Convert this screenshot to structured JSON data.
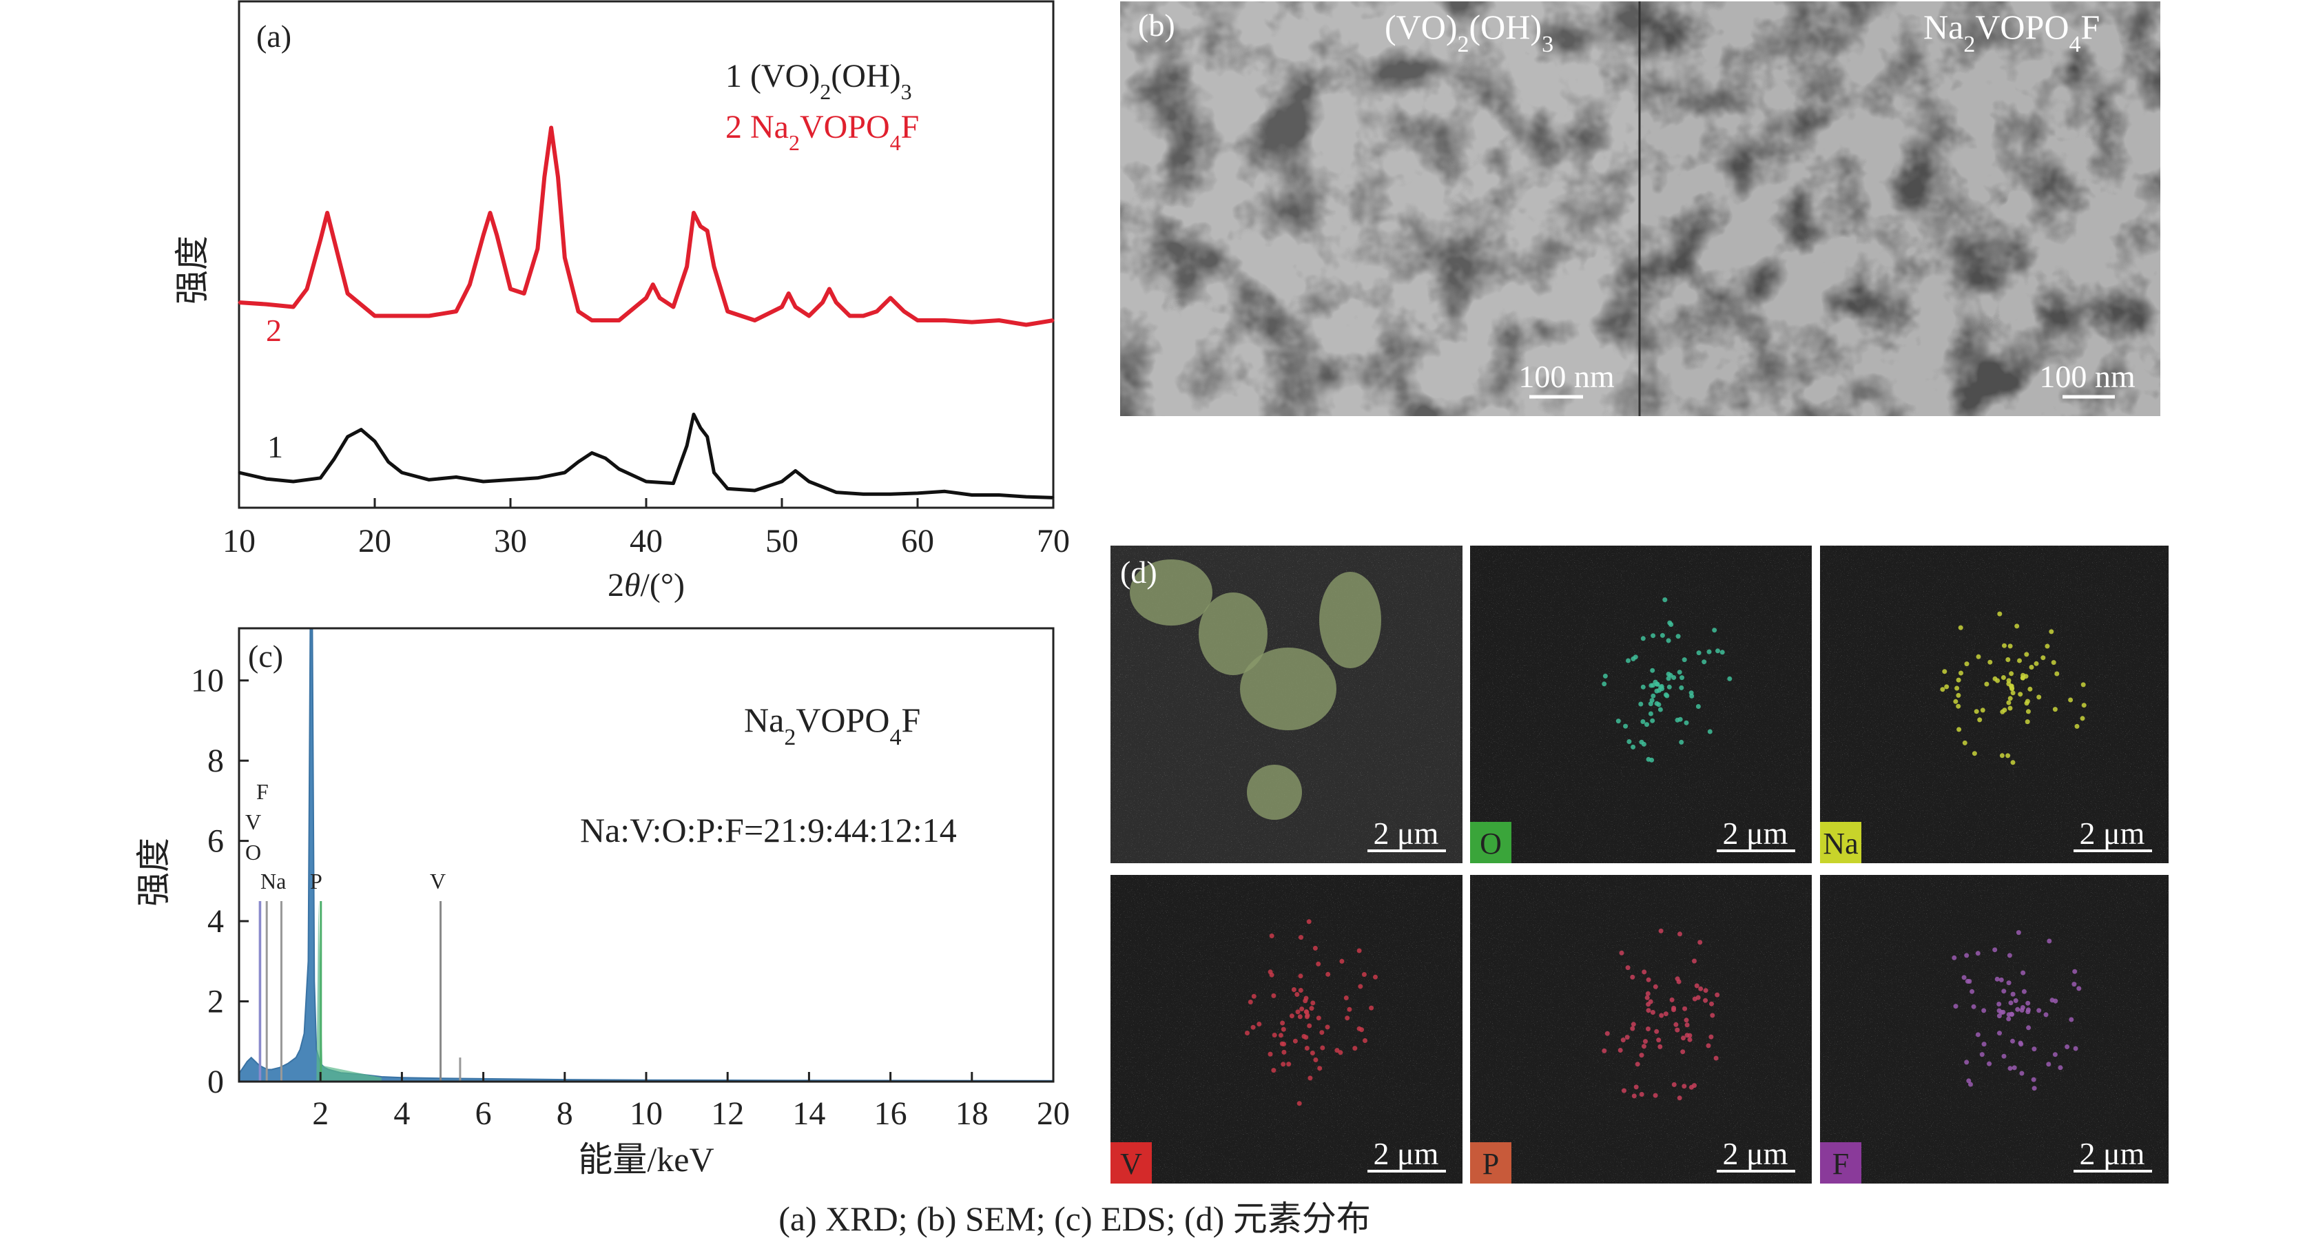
{
  "caption": "(a) XRD; (b) SEM; (c) EDS; (d) 元素分布",
  "panel_a": {
    "label": "(a)",
    "ylabel": "强度",
    "xlabel_prefix": "2",
    "xlabel_theta": "θ",
    "xlabel_suffix": "/(°)",
    "legend": [
      {
        "num": "1",
        "formula": [
          "(VO)",
          "2",
          "(OH)",
          "3"
        ],
        "color": "#222222"
      },
      {
        "num": "2",
        "formula": [
          "Na",
          "2",
          "VOPO",
          "4",
          "F"
        ],
        "color": "#e0202e"
      }
    ],
    "curve_labels": [
      "1",
      "2"
    ]
  },
  "panel_b": {
    "label": "(b)",
    "left_title": [
      "(VO)",
      "2",
      "(OH)",
      "3"
    ],
    "right_title": [
      "Na",
      "2",
      "VOPO",
      "4",
      "F"
    ],
    "scale_left": "100 nm",
    "scale_right": "100 nm"
  },
  "panel_c": {
    "label": "(c)",
    "title": [
      "Na",
      "2",
      "VOPO",
      "4",
      "F"
    ],
    "ratio": "Na:V:O:P:F=21:9:44:12:14",
    "ylabel": "强度",
    "xlabel": "能量/keV",
    "peak_labels": [
      "F",
      "V",
      "O",
      "Na",
      "P",
      "V"
    ]
  },
  "panel_d": {
    "label": "(d)",
    "tiles": [
      {
        "element": "",
        "scale": "2 μm",
        "badge_color": ""
      },
      {
        "element": "O",
        "scale": "2 μm",
        "badge_color": "#3aa53a"
      },
      {
        "element": "Na",
        "scale": "2 μm",
        "badge_color": "#c8d42a"
      },
      {
        "element": "V",
        "scale": "2 μm",
        "badge_color": "#d42a2a"
      },
      {
        "element": "P",
        "scale": "2 μm",
        "badge_color": "#c85a3a"
      },
      {
        "element": "F",
        "scale": "2 μm",
        "badge_color": "#8a3a9a"
      }
    ]
  },
  "chart_data": [
    {
      "type": "line",
      "title": "",
      "xlabel": "2θ/(°)",
      "ylabel": "强度",
      "xlim": [
        10,
        70
      ],
      "xticks": [
        10,
        20,
        30,
        40,
        50,
        60,
        70
      ],
      "yticks": [],
      "grid": false,
      "legend_position": "top-right",
      "series": [
        {
          "name": "1 (VO)2(OH)3",
          "color": "#111111",
          "x": [
            10,
            12,
            14,
            16,
            17,
            18,
            19,
            20,
            21,
            22,
            24,
            26,
            28,
            30,
            32,
            34,
            35,
            36,
            37,
            38,
            40,
            42,
            43,
            43.5,
            44,
            44.5,
            45,
            46,
            48,
            50,
            51,
            52,
            54,
            56,
            58,
            60,
            62,
            64,
            66,
            68,
            70
          ],
          "y": [
            0.3,
            0.23,
            0.2,
            0.24,
            0.45,
            0.7,
            0.78,
            0.65,
            0.42,
            0.3,
            0.22,
            0.25,
            0.2,
            0.22,
            0.24,
            0.3,
            0.42,
            0.52,
            0.46,
            0.34,
            0.2,
            0.18,
            0.6,
            0.95,
            0.8,
            0.7,
            0.3,
            0.12,
            0.1,
            0.2,
            0.32,
            0.2,
            0.08,
            0.06,
            0.06,
            0.07,
            0.09,
            0.05,
            0.05,
            0.03,
            0.02
          ]
        },
        {
          "name": "2 Na2VOPO4F",
          "color": "#e0202e",
          "x": [
            10,
            12,
            14,
            15,
            16,
            16.5,
            17,
            18,
            20,
            22,
            24,
            26,
            27,
            28,
            28.5,
            29,
            30,
            31,
            32,
            32.5,
            33,
            33.5,
            34,
            35,
            36,
            38,
            40,
            40.5,
            41,
            42,
            43,
            43.5,
            44,
            44.5,
            45,
            46,
            48,
            50,
            50.5,
            51,
            52,
            53,
            53.5,
            54,
            55,
            56,
            57,
            58,
            59,
            60,
            62,
            64,
            66,
            68,
            70
          ],
          "y": [
            2.2,
            2.18,
            2.15,
            2.35,
            2.9,
            3.2,
            2.9,
            2.3,
            2.05,
            2.05,
            2.05,
            2.1,
            2.4,
            2.95,
            3.2,
            2.95,
            2.35,
            2.3,
            2.8,
            3.6,
            4.15,
            3.6,
            2.7,
            2.1,
            2.0,
            2.0,
            2.25,
            2.4,
            2.25,
            2.15,
            2.6,
            3.2,
            3.05,
            3.0,
            2.6,
            2.1,
            2.0,
            2.15,
            2.3,
            2.15,
            2.05,
            2.2,
            2.35,
            2.2,
            2.05,
            2.05,
            2.1,
            2.25,
            2.1,
            2.0,
            2.0,
            1.98,
            2.0,
            1.95,
            2.0
          ]
        }
      ]
    },
    {
      "type": "area",
      "title": "Na2VOPO4F",
      "xlabel": "能量/keV",
      "ylabel": "强度",
      "xlim": [
        0,
        20
      ],
      "ylim": [
        0,
        11.3
      ],
      "xticks": [
        2,
        4,
        6,
        8,
        10,
        12,
        14,
        16,
        18,
        20
      ],
      "yticks": [
        0,
        2,
        4,
        6,
        8,
        10
      ],
      "grid": false,
      "annotations": [
        "F",
        "V",
        "O",
        "Na",
        "P",
        "V",
        "Na:V:O:P:F=21:9:44:12:14"
      ],
      "series": [
        {
          "name": "spectrum",
          "color": "#4a86b8",
          "x": [
            0.0,
            0.2,
            0.3,
            0.4,
            0.5,
            0.6,
            0.7,
            0.8,
            1.0,
            1.2,
            1.4,
            1.5,
            1.6,
            1.7,
            1.75,
            1.8,
            1.85,
            1.9,
            2.0,
            2.1,
            2.2,
            2.5,
            3.0,
            3.5,
            4.0,
            5.0,
            6.0,
            8.0,
            10.0,
            14.0,
            20.0
          ],
          "y": [
            0.2,
            0.5,
            0.6,
            0.5,
            0.4,
            0.35,
            0.3,
            0.3,
            0.35,
            0.45,
            0.6,
            0.8,
            1.2,
            3.0,
            11.3,
            11.3,
            2.5,
            0.8,
            0.45,
            0.35,
            0.3,
            0.22,
            0.18,
            0.12,
            0.1,
            0.08,
            0.07,
            0.05,
            0.04,
            0.03,
            0.02
          ]
        },
        {
          "name": "element lines",
          "color": "#777777",
          "x": [
            0.52,
            0.68,
            0.51,
            1.04,
            2.01,
            4.95
          ],
          "y": [
            4.5,
            4.5,
            4.5,
            4.5,
            4.5,
            4.5
          ],
          "labels": [
            "O",
            "F",
            "V",
            "Na",
            "P",
            "V"
          ]
        }
      ]
    }
  ]
}
